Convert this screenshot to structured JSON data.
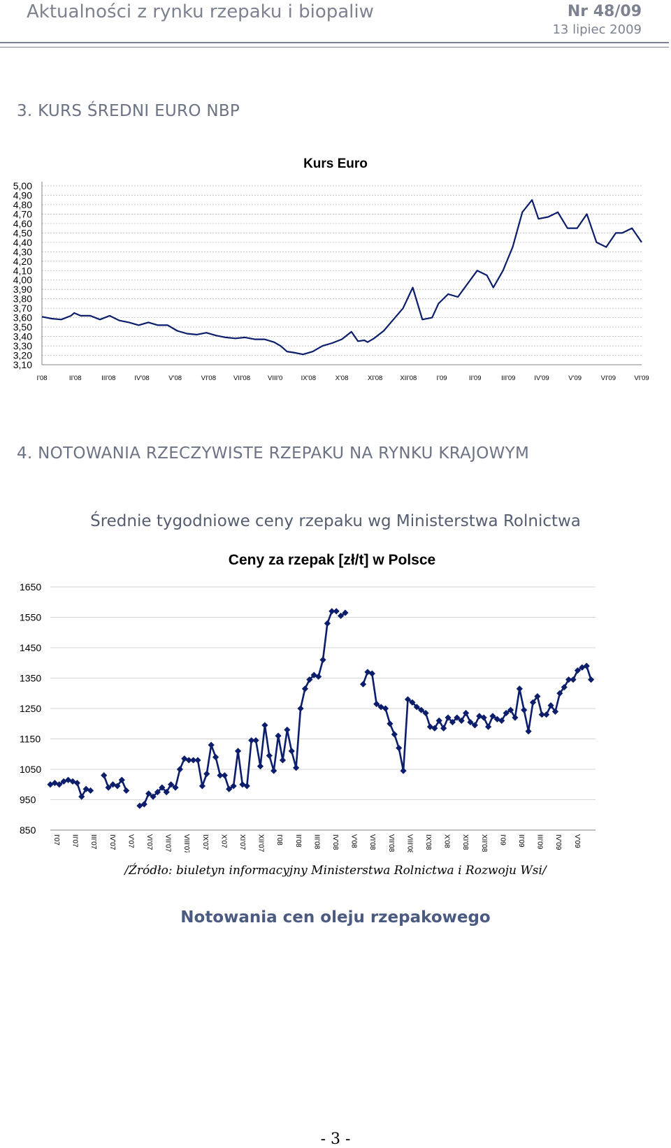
{
  "header": {
    "title": "Aktualności z rynku rzepaku i biopaliw",
    "issue": "Nr 48/09",
    "date": "13 lipiec 2009"
  },
  "section3": {
    "heading": "3. KURS ŚREDNI EURO  NBP"
  },
  "section4": {
    "heading": "4. NOTOWANIA RZECZYWISTE RZEPAKU NA RYNKU KRAJOWYM",
    "subheading": "Średnie tygodniowe ceny rzepaku wg Ministerstwa Rolnictwa"
  },
  "source_note": "/Źródło: biuletyn informacyjny Ministerstwa Rolnictwa i Rozwoju Wsi/",
  "next_heading": "Notowania cen oleju rzepakowego",
  "page_number": "- 3 -",
  "chart_data": [
    {
      "type": "line",
      "title": "Kurs Euro",
      "ylim": [
        3.1,
        5.0
      ],
      "yticks": [
        "5,00",
        "4,90",
        "4,80",
        "4,70",
        "4,60",
        "4,50",
        "4,40",
        "4,30",
        "4,20",
        "4,10",
        "4,00",
        "3,90",
        "3,80",
        "3,70",
        "3,60",
        "3,50",
        "3,40",
        "3,30",
        "3,20",
        "3,10"
      ],
      "categories": [
        "I'08",
        "II'08",
        "III'08",
        "IV'08",
        "V'08",
        "VI'08",
        "VII'08",
        "VIII'0",
        "IX'08",
        "X'08",
        "XI'08",
        "XII'08",
        "I'09",
        "II'09",
        "III'09",
        "IV'09",
        "V'09",
        "VI'09",
        "VI'09"
      ],
      "grid": true,
      "line_color": "#0b1d6b",
      "x": [
        0,
        0.3,
        0.6,
        0.9,
        1.0,
        1.2,
        1.5,
        1.8,
        2.1,
        2.4,
        2.7,
        3.0,
        3.3,
        3.6,
        3.9,
        4.2,
        4.5,
        4.8,
        5.1,
        5.4,
        5.7,
        6.0,
        6.3,
        6.6,
        6.9,
        7.2,
        7.4,
        7.6,
        7.8,
        8.1,
        8.4,
        8.7,
        9.0,
        9.3,
        9.6,
        9.8,
        10.0,
        10.1,
        10.3,
        10.6,
        10.9,
        11.2,
        11.5,
        11.8,
        12.1,
        12.3,
        12.6,
        12.9,
        13.2,
        13.5,
        13.8,
        14.0,
        14.3,
        14.6,
        14.9,
        15.2,
        15.4,
        15.7,
        16.0,
        16.3,
        16.6,
        16.9,
        17.2,
        17.5,
        17.8,
        18.0,
        18.3,
        18.6
      ],
      "values": [
        3.61,
        3.59,
        3.58,
        3.62,
        3.65,
        3.62,
        3.62,
        3.58,
        3.62,
        3.57,
        3.55,
        3.52,
        3.55,
        3.52,
        3.52,
        3.46,
        3.43,
        3.42,
        3.44,
        3.41,
        3.39,
        3.38,
        3.39,
        3.37,
        3.37,
        3.34,
        3.3,
        3.24,
        3.23,
        3.21,
        3.24,
        3.3,
        3.33,
        3.37,
        3.45,
        3.35,
        3.36,
        3.34,
        3.38,
        3.46,
        3.58,
        3.7,
        3.92,
        3.58,
        3.6,
        3.75,
        3.85,
        3.82,
        3.96,
        4.1,
        4.05,
        3.92,
        4.1,
        4.35,
        4.72,
        4.85,
        4.65,
        4.67,
        4.72,
        4.55,
        4.55,
        4.7,
        4.4,
        4.35,
        4.5,
        4.5,
        4.55,
        4.4
      ]
    },
    {
      "type": "line",
      "title": "Ceny za rzepak [zł/t] w Polsce",
      "ylim": [
        850,
        1650
      ],
      "yticks": [
        1650,
        1550,
        1450,
        1350,
        1250,
        1150,
        1050,
        950,
        850
      ],
      "categories": [
        "I'07",
        "II'07",
        "III'07",
        "IV'07",
        "V'07",
        "VI'07",
        "VII'07",
        "VIII'07",
        "IX'07",
        "X'07",
        "XI'07",
        "XII'07",
        "I'08",
        "II'08",
        "III'08",
        "IV'08",
        "V'08",
        "VI'08",
        "VII'08",
        "VIII'08",
        "IX'08",
        "X'08",
        "XI'08",
        "XII'08",
        "I'09",
        "II'09",
        "III'09",
        "IV'09",
        "V'09"
      ],
      "line_color": "#0b1d6b",
      "series": [
        {
          "x": [
            0.0,
            0.25,
            0.5,
            0.75,
            1.0,
            1.25,
            1.5,
            1.75,
            2.0,
            2.25,
            2.5
          ],
          "values": [
            1000,
            1005,
            1000,
            1010,
            1015,
            1010,
            1005,
            960,
            985,
            980,
            null
          ]
        },
        {
          "x": [
            3.0,
            3.25,
            3.5,
            3.75,
            4.0,
            4.25,
            4.5
          ],
          "values": [
            1030,
            990,
            1000,
            995,
            1015,
            980,
            null
          ]
        },
        {
          "x": [
            5.0,
            5.25,
            5.5,
            5.75,
            6.0,
            6.25,
            6.5,
            6.75,
            7.0,
            7.25,
            7.5,
            7.75,
            8.0,
            8.25,
            8.5,
            8.75,
            9.0,
            9.25,
            9.5,
            9.75,
            10.0,
            10.25,
            10.5,
            10.75,
            11.0,
            11.25,
            11.5,
            11.75,
            12.0,
            12.25,
            12.5,
            12.75,
            13.0,
            13.25,
            13.5,
            13.75,
            14.0,
            14.25,
            14.5,
            14.75,
            15.0,
            15.25,
            15.5,
            15.75,
            16.0
          ],
          "values": [
            930,
            935,
            970,
            960,
            975,
            990,
            975,
            1000,
            990,
            1050,
            1085,
            1080,
            1080,
            1080,
            995,
            1035,
            1130,
            1090,
            1030,
            1030,
            985,
            995,
            1110,
            1000,
            995,
            1145,
            1145,
            1060,
            1195,
            1095,
            1045,
            1160,
            1080,
            1180,
            1110,
            1055,
            1250,
            1315,
            1345,
            1360,
            1355,
            1410,
            1530,
            1570,
            1570
          ]
        },
        {
          "x": [
            16.25,
            16.5
          ],
          "values": [
            1555,
            1565
          ]
        },
        {
          "x": [
            17.5,
            17.75,
            18.0,
            18.25,
            18.5,
            18.75,
            19.0,
            19.25,
            19.5,
            19.75,
            20.0,
            20.25,
            20.5,
            20.75,
            21.0,
            21.25,
            21.5,
            21.75,
            22.0,
            22.25,
            22.5,
            22.75,
            23.0,
            23.25,
            23.5,
            23.75,
            24.0,
            24.25,
            24.5,
            24.75,
            25.0,
            25.25,
            25.5,
            25.75,
            26.0,
            26.25,
            26.5,
            26.75,
            27.0,
            27.25,
            27.5,
            27.75,
            28.0,
            28.25,
            28.5,
            28.75,
            29.0
          ],
          "values": [
            1330,
            1370,
            1365,
            1265,
            1255,
            1250,
            1200,
            1165,
            1120,
            1045,
            1280,
            1270,
            1255,
            1245,
            1235,
            1190,
            1185,
            1210,
            1185,
            1220,
            1205,
            1220,
            1210,
            1235,
            1205,
            1195,
            1225,
            1220,
            1190,
            1225,
            1215,
            1210,
            1235,
            1245,
            1220,
            1315,
            1245,
            1175,
            1270,
            1290,
            1230,
            1230,
            1260,
            1240,
            1300,
            1320,
            1345
          ]
        },
        {
          "x": [
            29.25,
            29.5,
            29.75,
            30.0,
            30.25
          ],
          "values": [
            1345,
            1375,
            1385,
            1390,
            1345
          ]
        }
      ]
    }
  ]
}
